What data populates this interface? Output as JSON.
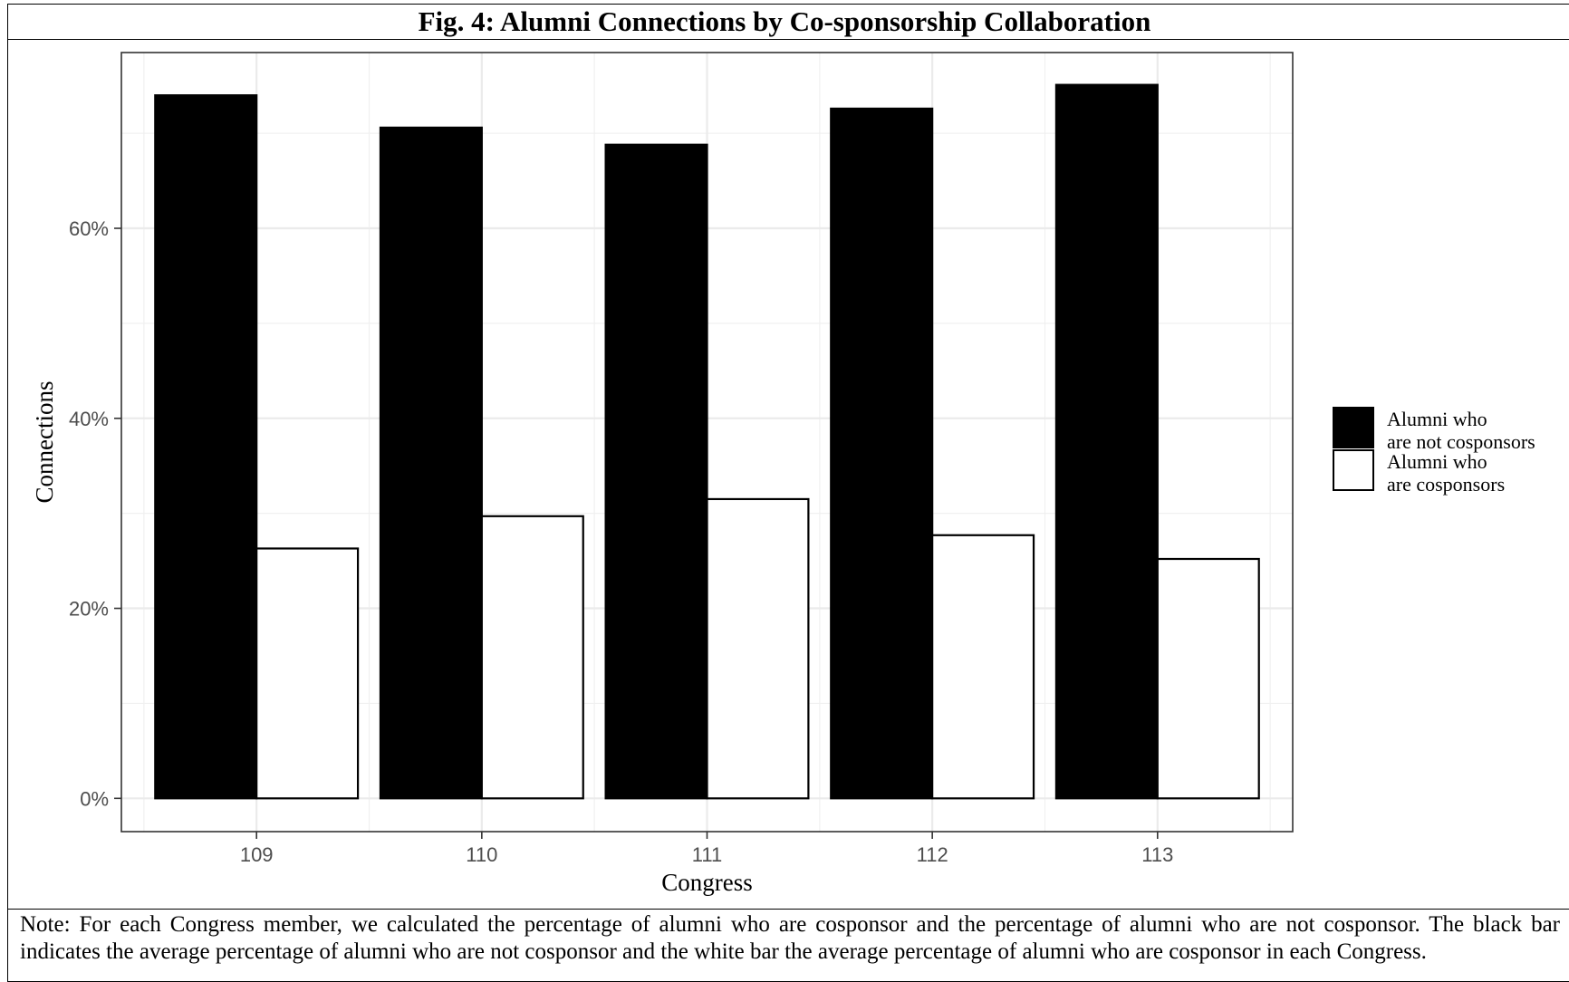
{
  "figure": {
    "title": "Fig. 4: Alumni Connections by Co-sponsorship Collaboration",
    "note": "Note: For each Congress member, we calculated the percentage of alumni who are cosponsor and the percentage of alumni who are not cosponsor. The black bar indicates the average percentage of alumni who are not cosponsor and the white bar the average percentage of alumni who are cosponsor in each Congress."
  },
  "chart_data": {
    "type": "bar",
    "title": "Fig. 4: Alumni Connections by Co-sponsorship Collaboration",
    "xlabel": "Congress",
    "ylabel": "Connections",
    "categories": [
      "109",
      "110",
      "111",
      "112",
      "113"
    ],
    "series": [
      {
        "name_lines": [
          "Alumni who",
          "are not cosponsors"
        ],
        "color": "#000000",
        "values": [
          74.0,
          70.6,
          68.8,
          72.6,
          75.1
        ]
      },
      {
        "name_lines": [
          "Alumni who",
          "are cosponsors"
        ],
        "color": "#ffffff",
        "values": [
          26.3,
          29.7,
          31.5,
          27.7,
          25.2
        ]
      }
    ],
    "yticks": [
      0,
      20,
      40,
      60
    ],
    "ytick_labels": [
      "0%",
      "20%",
      "40%",
      "60%"
    ],
    "ylim": [
      -3.5,
      78.5
    ],
    "grid": true,
    "legend_position": "right"
  }
}
